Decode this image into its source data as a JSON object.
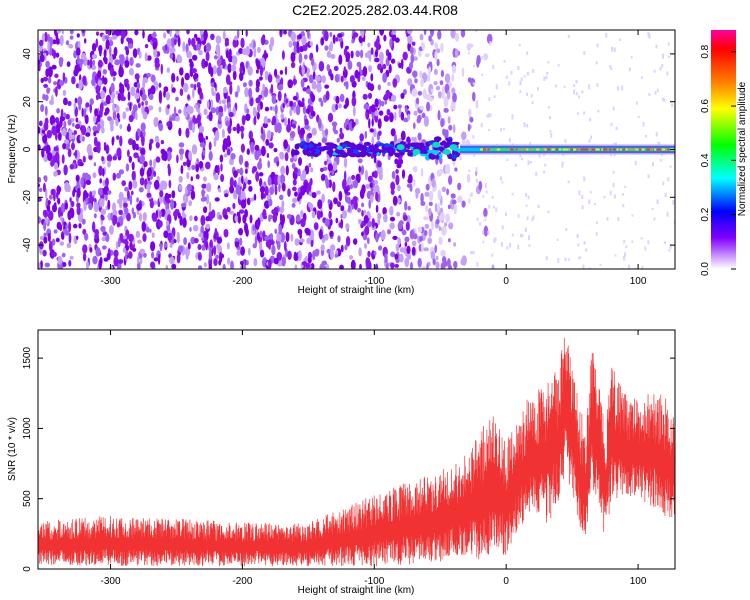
{
  "title": "C2E2.2025.282.03.44.R08",
  "chart_data": [
    {
      "type": "heatmap",
      "xlabel": "Height of straight line (km)",
      "ylabel": "Frequency (Hz)",
      "xlim": [
        -355,
        128
      ],
      "ylim": [
        -50,
        50
      ],
      "xticks": [
        -300,
        -200,
        -100,
        0,
        100
      ],
      "yticks": [
        -40,
        -20,
        0,
        20,
        40
      ],
      "colorbar": {
        "label": "Normalized spectral amplitude",
        "range": [
          0,
          0.88
        ],
        "ticks": [
          0,
          0.2,
          0.4,
          0.6,
          0.8
        ],
        "tick_labels": [
          "0.0",
          "0.2",
          "0.4",
          "0.6",
          "0.8"
        ],
        "colors": [
          "#ff00a0",
          "#ff0000",
          "#ff8000",
          "#ffff00",
          "#00ff00",
          "#00ffff",
          "#0000ff",
          "#8000ff",
          "#ffffff"
        ]
      },
      "features": {
        "broadband_noise_region_km": [
          -355,
          -35
        ],
        "narrowband_signal_frequency_hz": 0,
        "narrowband_signal_start_km": -160,
        "strong_signal_start_km": -35
      }
    },
    {
      "type": "line",
      "color": "#f03232",
      "xlabel": "Height of straight line (km)",
      "ylabel": "SNR (10 * v/v)",
      "xlim": [
        -355,
        128
      ],
      "ylim": [
        0,
        1700
      ],
      "xticks": [
        -300,
        -200,
        -100,
        0,
        100
      ],
      "yticks": [
        0,
        500,
        1000,
        1500
      ],
      "envelope": {
        "x": [
          -355,
          -300,
          -250,
          -200,
          -150,
          -100,
          -75,
          -50,
          -30,
          -20,
          -10,
          0,
          10,
          20,
          30,
          40,
          45,
          50,
          55,
          60,
          65,
          70,
          75,
          80,
          90,
          100,
          110,
          120,
          128
        ],
        "upper": [
          340,
          380,
          360,
          330,
          330,
          530,
          620,
          700,
          820,
          1000,
          1100,
          900,
          1100,
          1280,
          1350,
          1450,
          1700,
          1500,
          1200,
          1000,
          1650,
          1350,
          1000,
          1450,
          1250,
          1200,
          1280,
          1250,
          1100
        ],
        "lower": [
          30,
          20,
          20,
          20,
          20,
          20,
          30,
          50,
          100,
          30,
          80,
          100,
          300,
          400,
          300,
          450,
          700,
          500,
          300,
          150,
          600,
          400,
          200,
          500,
          500,
          500,
          450,
          350,
          330
        ]
      }
    }
  ]
}
